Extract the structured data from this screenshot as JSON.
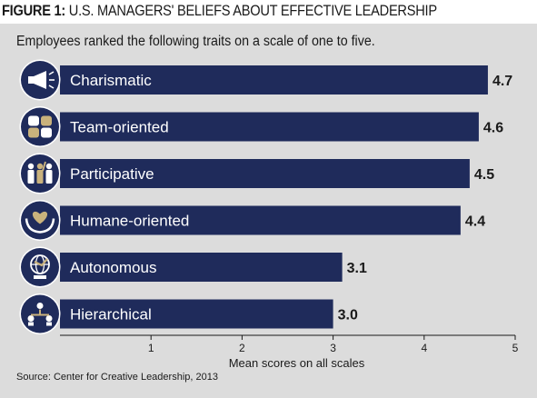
{
  "figure": {
    "label": "FIGURE 1:",
    "title": "U.S. MANAGERS' BELIEFS ABOUT EFFECTIVE LEADERSHIP",
    "subtitle": "Employees ranked the following traits on a scale of one to five.",
    "source": "Source: Center for Creative Leadership, 2013"
  },
  "colors": {
    "bar": "#1f2b5b",
    "panel": "#dcdcdc",
    "icon_gold": "#c9b27c"
  },
  "chart_data": {
    "type": "bar",
    "orientation": "horizontal",
    "categories": [
      "Charismatic",
      "Team-oriented",
      "Participative",
      "Humane-oriented",
      "Autonomous",
      "Hierarchical"
    ],
    "values": [
      4.7,
      4.6,
      4.5,
      4.4,
      3.1,
      3.0
    ],
    "value_labels": [
      "4.7",
      "4.6",
      "4.5",
      "4.4",
      "3.1",
      "3.0"
    ],
    "icons": [
      "megaphone-icon",
      "hands-icon",
      "people-icon",
      "heart-hands-icon",
      "globe-icon",
      "hierarchy-icon"
    ],
    "xlabel": "Mean scores on all scales",
    "xticks": [
      "1",
      "2",
      "3",
      "4",
      "5"
    ],
    "xlim": [
      0,
      5
    ],
    "grid": false
  }
}
